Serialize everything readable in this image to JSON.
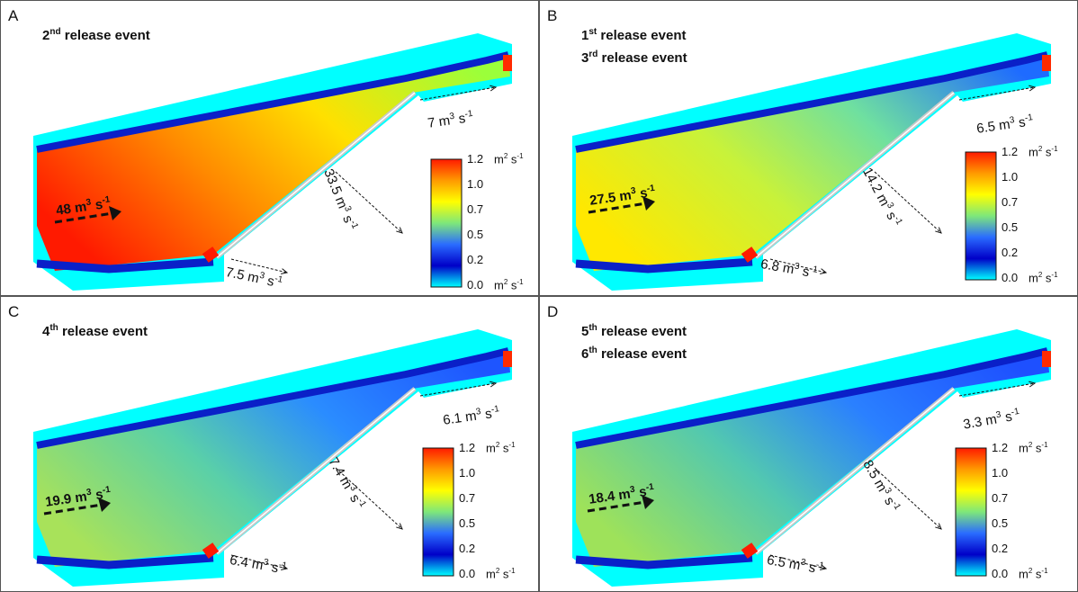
{
  "colorbar": {
    "ticks": [
      "1.2",
      "1.0",
      "0.7",
      "0.5",
      "0.2",
      "0.0"
    ],
    "unit_top": "m² s⁻¹",
    "unit_bottom": "m² s⁻¹",
    "colors": [
      "#ff1a00",
      "#ff9a00",
      "#ffff00",
      "#7ee87a",
      "#2a6cff",
      "#0000c8",
      "#00ffff"
    ]
  },
  "panels": [
    {
      "letter": "A",
      "events": [
        {
          "n": "2",
          "suffix": "nd",
          "text": " release event"
        }
      ],
      "inflow": "48 m³ s⁻¹",
      "top_outflow": "7 m³ s⁻¹",
      "diagonal_outflow": "33.5 m³ s⁻¹",
      "bottom_outflow": "7.5 m³ s⁻¹",
      "dominant_colors": [
        "#ff1a00",
        "#ff8a00",
        "#ffe000",
        "#9bff3a"
      ]
    },
    {
      "letter": "B",
      "events": [
        {
          "n": "1",
          "suffix": "st",
          "text": " release event"
        },
        {
          "n": "3",
          "suffix": "rd",
          "text": " release event"
        }
      ],
      "inflow": "27.5 m³ s⁻¹",
      "top_outflow": "6.5 m³ s⁻¹",
      "diagonal_outflow": "14.2 m³ s⁻¹",
      "bottom_outflow": "6.8 m³ s⁻¹",
      "dominant_colors": [
        "#ffe800",
        "#c8f23a",
        "#6fe0a0",
        "#1e6bff"
      ]
    },
    {
      "letter": "C",
      "events": [
        {
          "n": "4",
          "suffix": "th",
          "text": " release event"
        }
      ],
      "inflow": "19.9 m³ s⁻¹",
      "top_outflow": "6.1 m³ s⁻¹",
      "diagonal_outflow": "7.4 m³ s⁻¹",
      "bottom_outflow": "6.4 m³ s⁻¹",
      "dominant_colors": [
        "#a8e25a",
        "#5ad0a8",
        "#2a8cff",
        "#1e55ff"
      ]
    },
    {
      "letter": "D",
      "events": [
        {
          "n": "5",
          "suffix": "th",
          "text": " release event"
        },
        {
          "n": "6",
          "suffix": "th",
          "text": " release event"
        }
      ],
      "inflow": "18.4 m³ s⁻¹",
      "top_outflow": "3.3 m³ s⁻¹",
      "diagonal_outflow": "8.5 m³ s⁻¹",
      "bottom_outflow": "6.5 m³ s⁻¹",
      "dominant_colors": [
        "#9ee25a",
        "#52c8b0",
        "#2a80ff",
        "#1e50ff"
      ]
    }
  ]
}
